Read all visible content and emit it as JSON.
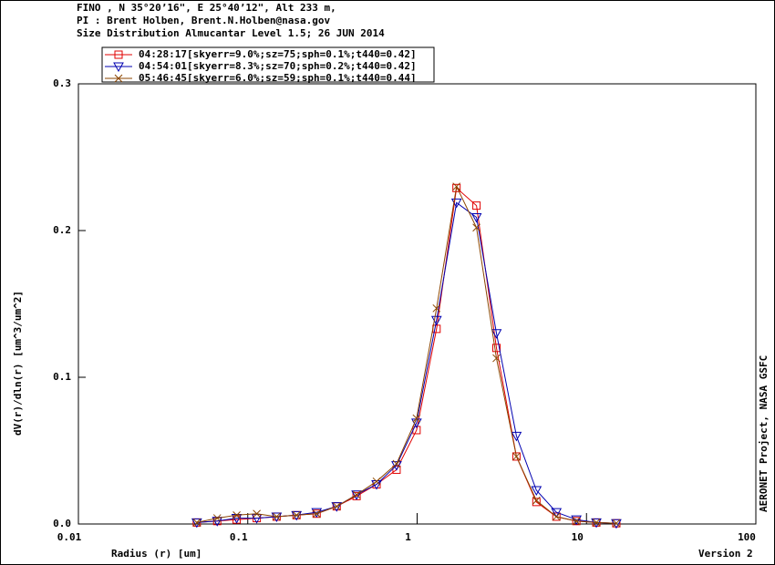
{
  "chart_data": {
    "type": "line",
    "header": [
      "FINO , N 35°20’16\", E 25°40’12\", Alt 233 m,",
      "PI : Brent Holben, Brent.N.Holben@nasa.gov",
      "Size Distribution Almucantar Level 1.5; 26 JUN 2014"
    ],
    "x_label": "Radius (r) [um]",
    "y_label": "dV(r)/dln(r) [um^3/um^2]",
    "side_note": "AERONET Project, NASA GSFC",
    "version": "Version 2",
    "x_log": true,
    "x": [
      0.05,
      0.066,
      0.086,
      0.113,
      0.148,
      0.194,
      0.255,
      0.335,
      0.439,
      0.576,
      0.756,
      0.992,
      1.302,
      1.708,
      2.241,
      2.94,
      3.857,
      5.061,
      6.641,
      8.713,
      11.432,
      15.0
    ],
    "xlim": [
      0.01,
      100
    ],
    "xticks": [
      0.01,
      0.1,
      1,
      10,
      100
    ],
    "ylim": [
      0,
      0.3
    ],
    "yticks": [
      {
        "value": 0,
        "label": "0.0"
      },
      {
        "value": 0.1,
        "label": "0.1"
      },
      {
        "value": 0.2,
        "label": "0.2"
      },
      {
        "value": 0.3,
        "label": "0.3"
      }
    ],
    "series": [
      {
        "name": "04:28:17[skyerr=9.0%;sz=75;sph=0.1%;t440=0.42]",
        "color": "#e00000",
        "marker": "square",
        "values": [
          0.001,
          0.002,
          0.003,
          0.004,
          0.005,
          0.006,
          0.007,
          0.012,
          0.019,
          0.027,
          0.037,
          0.064,
          0.133,
          0.229,
          0.217,
          0.12,
          0.046,
          0.015,
          0.005,
          0.002,
          0.001,
          0.0005
        ]
      },
      {
        "name": "04:54:01[skyerr=8.3%;sz=70;sph=0.2%;t440=0.42]",
        "color": "#0000b0",
        "marker": "triangle",
        "values": [
          0.001,
          0.002,
          0.004,
          0.004,
          0.005,
          0.006,
          0.008,
          0.012,
          0.02,
          0.027,
          0.04,
          0.069,
          0.139,
          0.219,
          0.209,
          0.13,
          0.06,
          0.023,
          0.008,
          0.003,
          0.001,
          0.0005
        ]
      },
      {
        "name": "05:46:45[skyerr=6.0%;sz=59;sph=0.1%;t440=0.44]",
        "color": "#8b4500",
        "marker": "x",
        "values": [
          0.001,
          0.004,
          0.006,
          0.007,
          0.005,
          0.006,
          0.007,
          0.012,
          0.02,
          0.029,
          0.041,
          0.072,
          0.147,
          0.23,
          0.202,
          0.113,
          0.046,
          0.016,
          0.005,
          0.002,
          0.001,
          0.0005
        ]
      }
    ]
  }
}
